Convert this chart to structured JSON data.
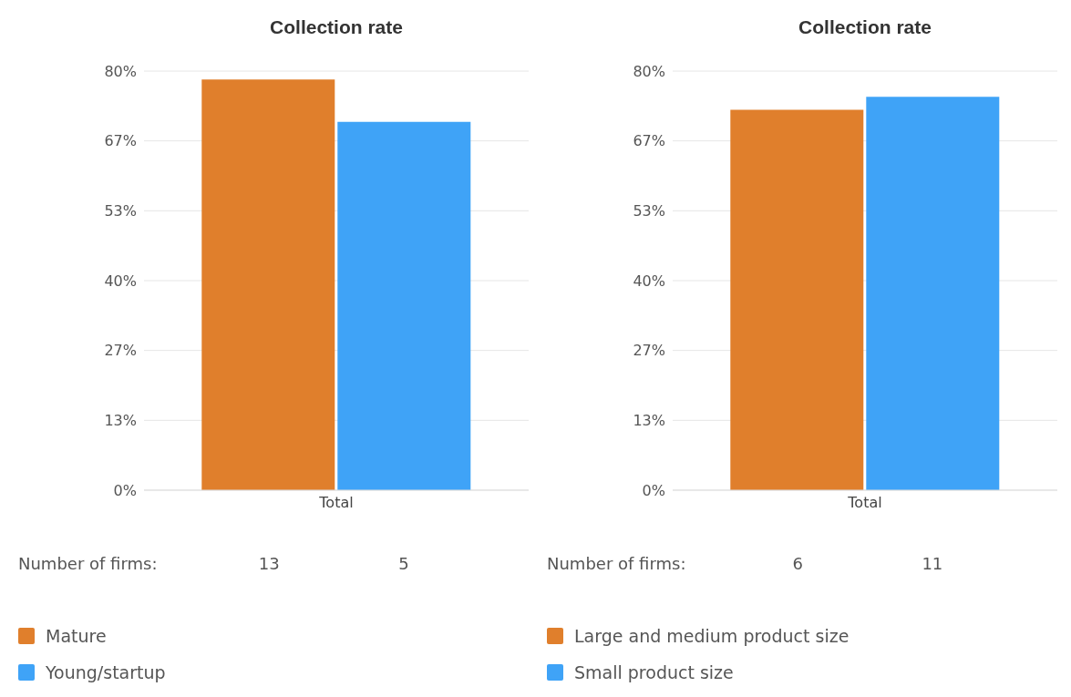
{
  "chart_data": [
    {
      "type": "bar",
      "title": "Collection rate",
      "categories": [
        "Total"
      ],
      "series": [
        {
          "name": "Mature",
          "color": "#e07f2c",
          "values": [
            78.4
          ]
        },
        {
          "name": "Young/startup",
          "color": "#3fa3f7",
          "values": [
            70.3
          ]
        }
      ],
      "ylim": [
        0,
        80
      ],
      "yticks": [
        {
          "value": 0,
          "label": "0%"
        },
        {
          "value": 13.33,
          "label": "13%"
        },
        {
          "value": 26.67,
          "label": "27%"
        },
        {
          "value": 40,
          "label": "40%"
        },
        {
          "value": 53.33,
          "label": "53%"
        },
        {
          "value": 66.67,
          "label": "67%"
        },
        {
          "value": 80,
          "label": "80%"
        }
      ],
      "grid": "y",
      "legend": "bottom left",
      "annotations": [
        "Number of firms:",
        "13",
        "5"
      ]
    },
    {
      "type": "bar",
      "title": "Collection rate",
      "categories": [
        "Total"
      ],
      "series": [
        {
          "name": "Large and medium product size",
          "color": "#e07f2c",
          "values": [
            72.6
          ]
        },
        {
          "name": "Small product size",
          "color": "#3fa3f7",
          "values": [
            75.1
          ]
        }
      ],
      "ylim": [
        0,
        80
      ],
      "yticks": [
        {
          "value": 0,
          "label": "0%"
        },
        {
          "value": 13.33,
          "label": "13%"
        },
        {
          "value": 26.67,
          "label": "27%"
        },
        {
          "value": 40,
          "label": "40%"
        },
        {
          "value": 53.33,
          "label": "53%"
        },
        {
          "value": 66.67,
          "label": "67%"
        },
        {
          "value": 80,
          "label": "80%"
        }
      ],
      "grid": "y",
      "legend": "bottom left",
      "annotations": [
        "Number of firms:",
        "6",
        "11"
      ]
    }
  ]
}
